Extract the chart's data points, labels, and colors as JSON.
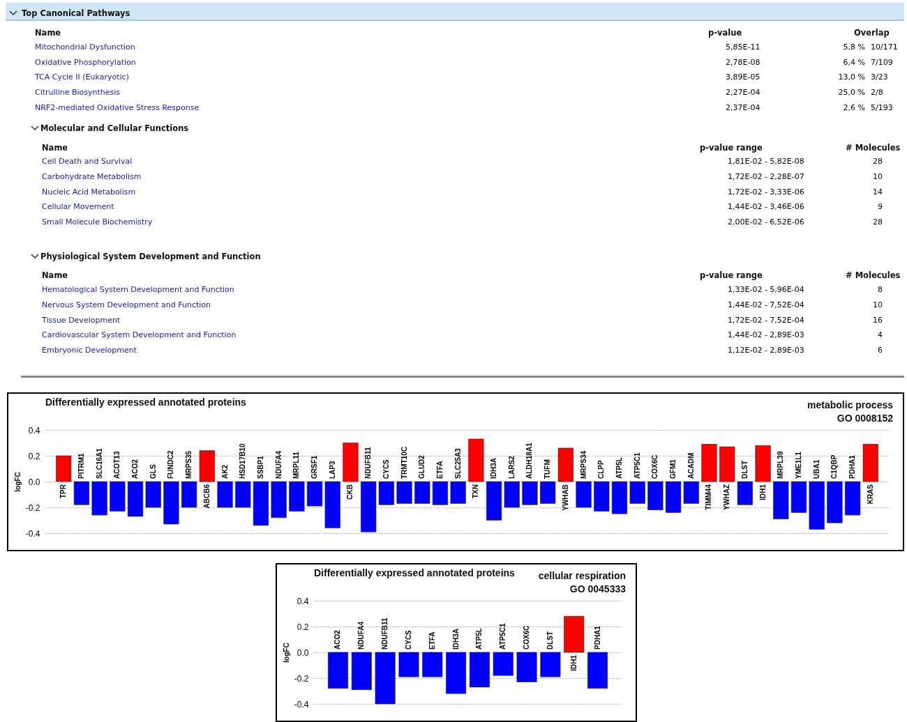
{
  "chart_data": [
    {
      "type": "other",
      "title": "Top Canonical Pathways",
      "annotations": [
        "Name",
        "p-value",
        "Overlap",
        "Mitochondrial Dysfunction",
        "5,85E-11",
        "5,8 %",
        "10/171",
        "Oxidative Phosphorylation",
        "2,78E-08",
        "6,4 %",
        "7/109",
        "TCA Cycle II (Eukaryotic)",
        "3,89E-05",
        "13,0 %",
        "3/23",
        "Citrulline Biosynthesis",
        "2,27E-04",
        "25,0 %",
        "2/8",
        "NRF2-mediated Oxidative Stress Response",
        "2,37E-04",
        "2,6 %",
        "5/193"
      ]
    },
    {
      "type": "other",
      "title": "Molecular and Cellular Functions",
      "annotations": [
        "Name",
        "p-value range",
        "# Molecules",
        "Cell Death and Survival",
        "1,81E-02 - 5,82E-08",
        "28",
        "Carbohydrate Metabolism",
        "1,72E-02 - 2,28E-07",
        "10",
        "Nucleic Acid Metabolism",
        "1,72E-02 - 3,33E-06",
        "14",
        "Cellular Movement",
        "1,44E-02 - 3,46E-06",
        "9",
        "Small Molecule Biochemistry",
        "2,00E-02 - 6,52E-06",
        "28"
      ]
    },
    {
      "type": "other",
      "title": "Physiological System Development and Function",
      "annotations": [
        "Name",
        "p-value range",
        "# Molecules",
        "Hematological System Development and Function",
        "1,33E-02 - 5,96E-04",
        "8",
        "Nervous System Development and Function",
        "1,44E-02 - 7,52E-04",
        "10",
        "Tissue Development",
        "1,72E-02 - 7,52E-04",
        "16",
        "Cardiovascular System Development and Function",
        "1,44E-02 - 2,89E-03",
        "4",
        "Embryonic Development",
        "1,12E-02 - 2,89E-03",
        "6"
      ]
    },
    {
      "type": "bar",
      "title": "Differentially expressed annotated proteins",
      "annotations": [
        "metabolic process",
        "GO 0008152"
      ],
      "ylabel": "logFC",
      "categories": [
        "TPR",
        "PITRM1",
        "SLC16A1",
        "ACOT13",
        "ACO2",
        "GLS",
        "FUNDC2",
        "MRPS35",
        "ABCB6",
        "AK2",
        "HSD17B10",
        "SSBP1",
        "NDUFA4",
        "MRPL11",
        "GRSF1",
        "LAP3",
        "CKB",
        "NDUFB11",
        "CYCS",
        "TRMT10C",
        "GLUD2",
        "ETFA",
        "SLC25A3",
        "TXN",
        "IDH3A",
        "LARS2",
        "ALDH18A1",
        "TUFM",
        "YWHAB",
        "MRPS34",
        "CLPP",
        "ATP5L",
        "ATP5C1",
        "COX6C",
        "GFM1",
        "ACADM",
        "TIMM44",
        "YWHAZ",
        "DLST",
        "IDH1",
        "MRPL39",
        "YME1L1",
        "UBA1",
        "C1QBP",
        "PDHA1",
        "KRAS"
      ],
      "values": [
        0.2,
        -0.18,
        -0.26,
        -0.23,
        -0.27,
        -0.2,
        -0.33,
        -0.2,
        0.24,
        -0.2,
        -0.2,
        -0.34,
        -0.28,
        -0.23,
        -0.19,
        -0.36,
        0.3,
        -0.39,
        -0.18,
        -0.17,
        -0.17,
        -0.18,
        -0.17,
        0.33,
        -0.3,
        -0.2,
        -0.18,
        -0.17,
        0.26,
        -0.2,
        -0.23,
        -0.25,
        -0.17,
        -0.22,
        -0.24,
        -0.17,
        0.29,
        0.27,
        -0.18,
        0.28,
        -0.29,
        -0.24,
        -0.37,
        -0.32,
        -0.26,
        0.29
      ],
      "colors": [
        "#ff0000",
        "#0000ff",
        "#0000ff",
        "#0000ff",
        "#0000ff",
        "#0000ff",
        "#0000ff",
        "#0000ff",
        "#ff0000",
        "#0000ff",
        "#0000ff",
        "#0000ff",
        "#0000ff",
        "#0000ff",
        "#0000ff",
        "#0000ff",
        "#ff0000",
        "#0000ff",
        "#0000ff",
        "#0000ff",
        "#0000ff",
        "#0000ff",
        "#0000ff",
        "#ff0000",
        "#0000ff",
        "#0000ff",
        "#0000ff",
        "#0000ff",
        "#ff0000",
        "#0000ff",
        "#0000ff",
        "#0000ff",
        "#0000ff",
        "#0000ff",
        "#0000ff",
        "#0000ff",
        "#ff0000",
        "#ff0000",
        "#0000ff",
        "#ff0000",
        "#0000ff",
        "#0000ff",
        "#0000ff",
        "#0000ff",
        "#0000ff",
        "#ff0000"
      ],
      "ylim": [
        -0.4,
        0.4
      ],
      "yticks": [
        -0.4,
        -0.2,
        {
          "value": 0,
          "label": "0.0"
        },
        0.2,
        0.4
      ],
      "grid": "y"
    },
    {
      "type": "bar",
      "title": "Differentially expressed annotated proteins",
      "annotations": [
        "cellular respiration",
        "GO 0045333"
      ],
      "ylabel": "logFC",
      "categories": [
        "ACO2",
        "NDUFA4",
        "NDUFB11",
        "CYCS",
        "ETFA",
        "IDH3A",
        "ATP5L",
        "ATP5C1",
        "COX6C",
        "DLST",
        "IDH1",
        "PDHA1"
      ],
      "values": [
        -0.28,
        -0.29,
        -0.4,
        -0.19,
        -0.19,
        -0.32,
        -0.27,
        -0.18,
        -0.23,
        -0.19,
        0.28,
        -0.28
      ],
      "colors": [
        "#0000ff",
        "#0000ff",
        "#0000ff",
        "#0000ff",
        "#0000ff",
        "#0000ff",
        "#0000ff",
        "#0000ff",
        "#0000ff",
        "#0000ff",
        "#ff0000",
        "#0000ff"
      ],
      "ylim": [
        -0.4,
        0.4
      ],
      "yticks": [
        -0.4,
        -0.2,
        {
          "value": 0,
          "label": "0.0"
        },
        0.2,
        0.4
      ],
      "grid": "y"
    }
  ]
}
